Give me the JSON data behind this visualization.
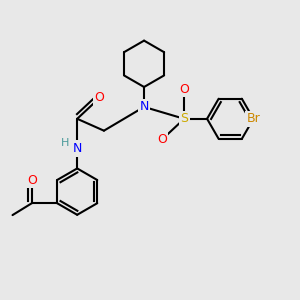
{
  "bg_color": "#e8e8e8",
  "bond_color": "#000000",
  "bond_width": 1.5,
  "atom_colors": {
    "N": "#0000ff",
    "O": "#ff0000",
    "S": "#ccaa00",
    "Br": "#cc8800",
    "C": "#000000",
    "H": "#4a9a9a"
  },
  "font_size": 9,
  "fig_size": [
    3.0,
    3.0
  ],
  "dpi": 100
}
